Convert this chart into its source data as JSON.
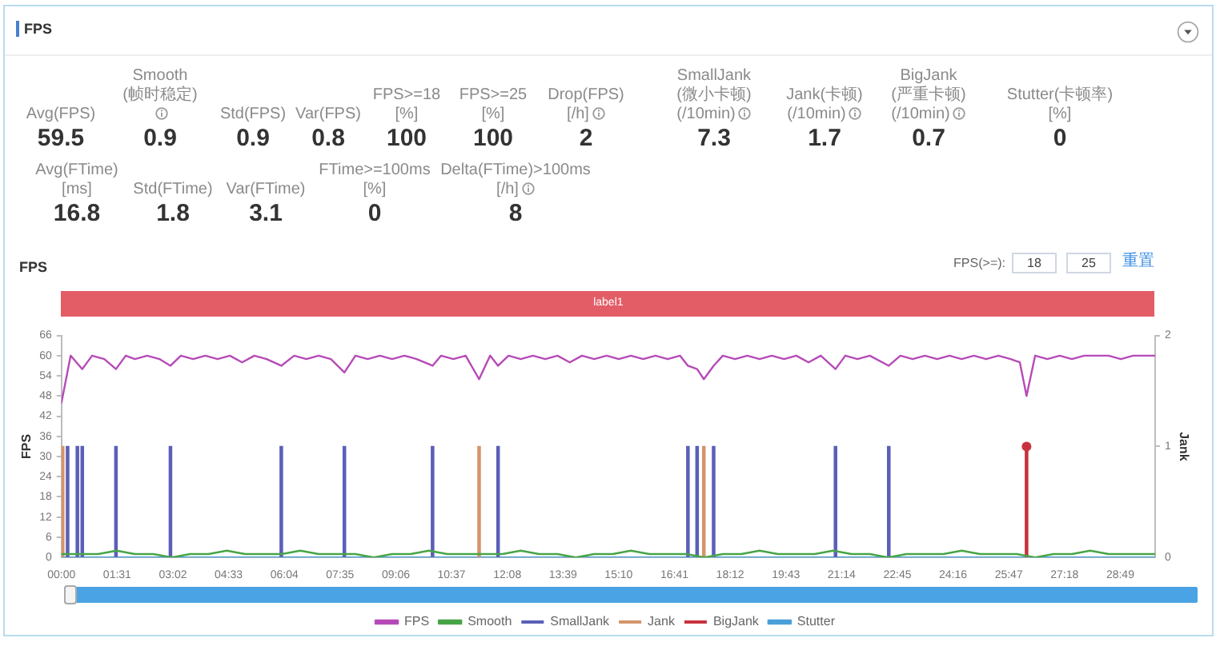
{
  "chart_data": [
    {
      "type": "other",
      "title": "FPS",
      "data_labels": true,
      "categories": [
        "Avg(FPS)",
        "Smooth(帧时稳定)",
        "Std(FPS)",
        "Var(FPS)",
        "FPS>=18 [%]",
        "FPS>=25 [%]",
        "Drop(FPS) [/h]",
        "SmallJank(微小卡顿) (/10min)",
        "Jank(卡顿) (/10min)",
        "BigJank(严重卡顿) (/10min)",
        "Stutter(卡顿率) [%]",
        "Avg(FTime) [ms]",
        "Std(FTime)",
        "Var(FTime)",
        "FTime>=100ms [%]",
        "Delta(FTime)>100ms [/h]"
      ],
      "values": [
        59.5,
        0.9,
        0.9,
        0.8,
        100,
        100,
        2,
        7.3,
        1.7,
        0.7,
        0,
        16.8,
        1.8,
        3.1,
        0,
        8
      ]
    },
    {
      "type": "line",
      "title": "FPS",
      "annotations": [
        "FPS(>=):",
        "18",
        "25",
        "重置",
        "label1"
      ],
      "ylabel": "FPS",
      "y2label": "Jank",
      "xlim": [
        0,
        1786
      ],
      "xticks": [
        {
          "value": 0,
          "label": "00:00"
        },
        {
          "value": 91,
          "label": "01:31"
        },
        {
          "value": 182,
          "label": "03:02"
        },
        {
          "value": 273,
          "label": "04:33"
        },
        {
          "value": 364,
          "label": "06:04"
        },
        {
          "value": 455,
          "label": "07:35"
        },
        {
          "value": 546,
          "label": "09:06"
        },
        {
          "value": 637,
          "label": "10:37"
        },
        {
          "value": 728,
          "label": "12:08"
        },
        {
          "value": 819,
          "label": "13:39"
        },
        {
          "value": 910,
          "label": "15:10"
        },
        {
          "value": 1001,
          "label": "16:41"
        },
        {
          "value": 1092,
          "label": "18:12"
        },
        {
          "value": 1183,
          "label": "19:43"
        },
        {
          "value": 1274,
          "label": "21:14"
        },
        {
          "value": 1365,
          "label": "22:45"
        },
        {
          "value": 1456,
          "label": "24:16"
        },
        {
          "value": 1547,
          "label": "25:47"
        },
        {
          "value": 1638,
          "label": "27:18"
        },
        {
          "value": 1729,
          "label": "28:49"
        }
      ],
      "ylim": [
        0,
        66
      ],
      "yticks": [
        0,
        6,
        12,
        18,
        24,
        30,
        36,
        42,
        48,
        54,
        60,
        66
      ],
      "y2lim": [
        0,
        2
      ],
      "y2ticks": [
        0,
        1,
        2
      ],
      "legend": "bottom",
      "marker": "none",
      "series": [
        {
          "name": "FPS",
          "color": "#b64ab8",
          "x": [
            0,
            15,
            34,
            50,
            70,
            89,
            105,
            120,
            140,
            160,
            178,
            195,
            215,
            235,
            255,
            275,
            295,
            315,
            335,
            359,
            380,
            400,
            420,
            440,
            462,
            480,
            500,
            520,
            540,
            560,
            580,
            606,
            620,
            640,
            660,
            682,
            700,
            713,
            730,
            750,
            770,
            790,
            810,
            830,
            850,
            870,
            890,
            910,
            930,
            950,
            970,
            990,
            1010,
            1023,
            1038,
            1049,
            1065,
            1080,
            1100,
            1120,
            1140,
            1160,
            1180,
            1200,
            1220,
            1240,
            1264,
            1280,
            1300,
            1320,
            1351,
            1370,
            1390,
            1410,
            1430,
            1450,
            1470,
            1490,
            1510,
            1530,
            1550,
            1565,
            1576,
            1590,
            1610,
            1630,
            1650,
            1670,
            1690,
            1710,
            1730,
            1750,
            1770,
            1786
          ],
          "values": [
            46,
            60,
            56,
            60,
            59,
            56,
            60,
            59,
            60,
            59,
            57,
            60,
            59,
            60,
            59,
            60,
            58,
            60,
            59,
            57,
            60,
            59,
            60,
            59,
            55,
            60,
            59,
            60,
            59,
            60,
            59,
            57,
            60,
            59,
            60,
            53,
            60,
            57,
            60,
            59,
            60,
            59,
            60,
            58,
            60,
            59,
            60,
            59,
            60,
            59,
            60,
            59,
            60,
            57,
            56,
            53,
            57,
            60,
            59,
            60,
            59,
            60,
            59,
            60,
            58,
            60,
            56,
            60,
            59,
            60,
            57,
            60,
            59,
            60,
            59,
            60,
            59,
            60,
            59,
            60,
            59,
            58,
            48,
            60,
            59,
            60,
            59,
            60,
            60,
            60,
            59,
            60,
            60,
            60
          ]
        },
        {
          "name": "Smooth",
          "color": "#46a546",
          "x": [
            0,
            30,
            60,
            90,
            120,
            150,
            180,
            210,
            240,
            270,
            300,
            330,
            360,
            390,
            420,
            450,
            480,
            510,
            540,
            570,
            600,
            630,
            660,
            690,
            720,
            750,
            780,
            810,
            840,
            870,
            900,
            930,
            960,
            990,
            1020,
            1050,
            1080,
            1110,
            1140,
            1170,
            1200,
            1230,
            1260,
            1290,
            1320,
            1350,
            1380,
            1410,
            1440,
            1470,
            1500,
            1530,
            1560,
            1590,
            1620,
            1650,
            1680,
            1710,
            1740,
            1770,
            1786
          ],
          "values": [
            1,
            1,
            1,
            2,
            1,
            1,
            0,
            1,
            1,
            2,
            1,
            1,
            1,
            2,
            1,
            1,
            1,
            0,
            1,
            1,
            2,
            1,
            1,
            1,
            1,
            2,
            1,
            1,
            0,
            1,
            1,
            2,
            1,
            1,
            1,
            0,
            1,
            1,
            2,
            1,
            1,
            1,
            2,
            1,
            1,
            0,
            1,
            1,
            1,
            2,
            1,
            1,
            1,
            0,
            1,
            1,
            2,
            1,
            1,
            1,
            1
          ]
        },
        {
          "name": "SmallJank",
          "color": "#5b5fb8",
          "axis": "y2",
          "type": "bar",
          "x": [
            10,
            26,
            34,
            89,
            178,
            359,
            462,
            606,
            713,
            1023,
            1038,
            1065,
            1264,
            1351
          ],
          "values": [
            1,
            1,
            1,
            1,
            1,
            1,
            1,
            1,
            1,
            1,
            1,
            1,
            1,
            1
          ]
        },
        {
          "name": "Jank",
          "color": "#d4956c",
          "axis": "y2",
          "type": "bar",
          "x": [
            2,
            682,
            1049
          ],
          "values": [
            1,
            1,
            1
          ]
        },
        {
          "name": "BigJank",
          "color": "#c8323c",
          "axis": "y2",
          "type": "lollipop",
          "marker": "circle",
          "x": [
            1576
          ],
          "values": [
            1
          ]
        },
        {
          "name": "Stutter",
          "color": "#4a9fd8",
          "axis": "y2",
          "x": [
            0,
            1786
          ],
          "values": [
            0,
            0
          ]
        }
      ]
    }
  ]
}
